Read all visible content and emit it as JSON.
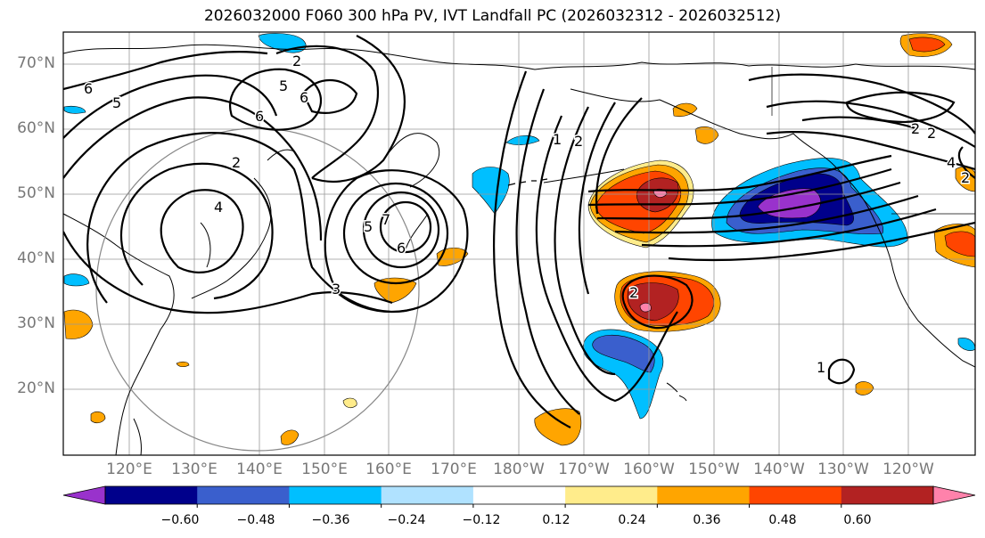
{
  "title": "2026032000 F060 300 hPa PV, IVT Landfall PC (2026032312 - 2026032512)",
  "lat_labels": [
    "70°N",
    "60°N",
    "50°N",
    "40°N",
    "30°N",
    "20°N"
  ],
  "lon_labels": [
    "120°E",
    "130°E",
    "140°E",
    "150°E",
    "160°E",
    "170°E",
    "180°W",
    "170°W",
    "160°W",
    "150°W",
    "140°W",
    "130°W",
    "120°W"
  ],
  "colorbar": {
    "tick_labels": [
      "−0.60",
      "−0.48",
      "−0.36",
      "−0.24",
      "−0.12",
      "0.12",
      "0.24",
      "0.36",
      "0.48",
      "0.60"
    ],
    "colors": [
      "#9932CC",
      "#00008B",
      "#3A5FCD",
      "#00BFFF",
      "#B0E2FF",
      "#FFFFFF",
      "#FFEC8B",
      "#FFA500",
      "#FF4500",
      "#B22222",
      "#FF82AB"
    ]
  },
  "contour_labels": [
    "6",
    "5",
    "2",
    "6",
    "5",
    "2",
    "6",
    "4",
    "5",
    "7",
    "6",
    "3",
    "1",
    "2",
    "2",
    "2",
    "2",
    "1",
    "4",
    "2"
  ]
}
